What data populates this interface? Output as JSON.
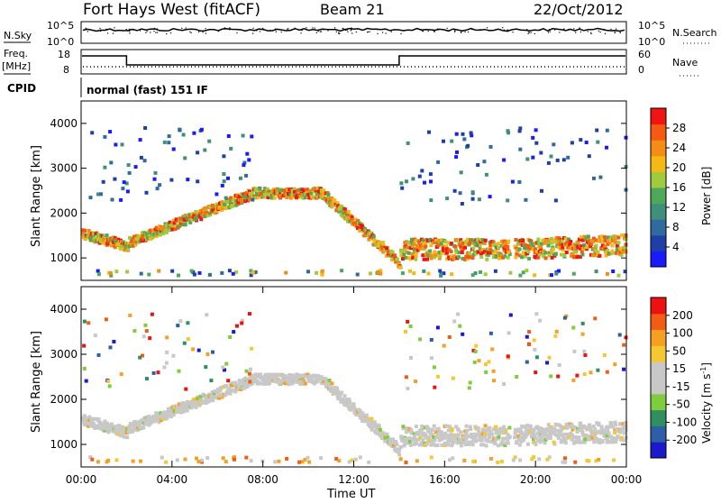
{
  "header": {
    "title": "Fort Hays West (fitACF)",
    "beam": "Beam 21",
    "date": "22/Oct/2012"
  },
  "noise_panel": {
    "left_label": "N.Sky",
    "right_label": "N.Search",
    "tick_top": "10^5",
    "tick_bottom": "10^0"
  },
  "freq_panel": {
    "left_label": "Freq.",
    "left_unit": "[MHz]",
    "left_tick_top": "18",
    "left_tick_bottom": "8",
    "right_label": "Nave",
    "right_tick_top": "60",
    "right_tick_bottom": "0"
  },
  "cpid": {
    "label": "CPID",
    "value": "normal (fast) 151 IF"
  },
  "colors": {
    "power": [
      "#1a1aff",
      "#1f3fa8",
      "#2f6b9e",
      "#3f8f7a",
      "#4ea85a",
      "#9ecc3e",
      "#f5b814",
      "#f58c14",
      "#f55a14",
      "#f01414"
    ],
    "velocity": [
      "#ee1111",
      "#f25c14",
      "#f5a023",
      "#f5c832",
      "#c8c8c8",
      "#c8c8c8",
      "#7fcc3e",
      "#2f8f5e",
      "#2f5ea8",
      "#1a1acc"
    ]
  },
  "chart_data": [
    {
      "type": "heatmap",
      "name": "power",
      "ylabel": "Slant Range [km]",
      "yticks": [
        "1000",
        "2000",
        "3000",
        "4000"
      ],
      "ylim": [
        500,
        4500
      ],
      "xlim": [
        "00:00",
        "24:00"
      ],
      "colorbar": {
        "label": "Power [dB]",
        "ticks": [
          "4",
          "8",
          "12",
          "16",
          "20",
          "24",
          "28"
        ],
        "range": [
          0,
          30
        ]
      },
      "echo_bands_hours_km": [
        {
          "start": 0.0,
          "end": 2.0,
          "km_from": 1500,
          "km_to": 1200
        },
        {
          "start": 2.0,
          "end": 7.5,
          "km_from": 1300,
          "km_to": 2400
        },
        {
          "start": 7.5,
          "end": 10.5,
          "km_from": 2400,
          "km_to": 2400
        },
        {
          "start": 10.5,
          "end": 14.0,
          "km_from": 2400,
          "km_to": 800
        },
        {
          "start": 14.0,
          "end": 18.8,
          "km_from": 1100,
          "km_to": 1100
        },
        {
          "start": 19.0,
          "end": 24.0,
          "km_from": 1100,
          "km_to": 1200
        }
      ]
    },
    {
      "type": "heatmap",
      "name": "velocity",
      "ylabel": "Slant Range [km]",
      "yticks": [
        "1000",
        "2000",
        "3000",
        "4000"
      ],
      "ylim": [
        500,
        4500
      ],
      "xlabel": "Time UT",
      "xticks": [
        "00:00",
        "04:00",
        "08:00",
        "12:00",
        "16:00",
        "20:00",
        "00:00"
      ],
      "colorbar": {
        "label": "Velocity [m s",
        "label_sup": "-1",
        "label_end": "]",
        "ticks": [
          "200",
          "100",
          "50",
          "15",
          "-15",
          "-50",
          "-100",
          "-200"
        ],
        "range": [
          -250,
          250
        ]
      }
    }
  ]
}
